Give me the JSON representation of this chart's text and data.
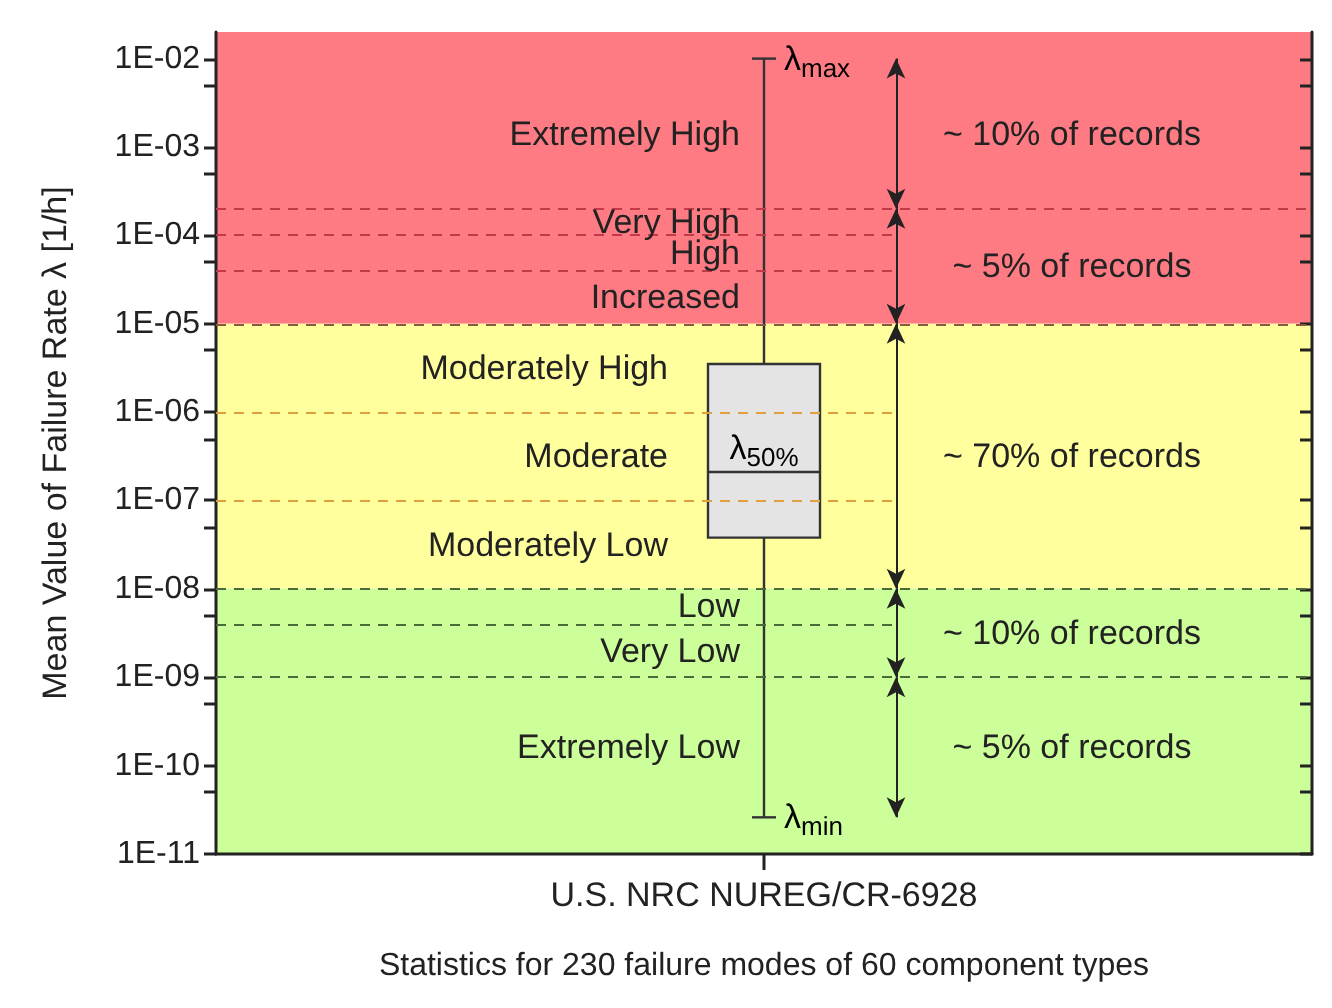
{
  "chart_data": {
    "type": "box",
    "xlabel": "Statistics for 230 failure modes of 60 component types",
    "ylabel": "Mean Value of Failure Rate λ [1/h]",
    "categories": [
      "U.S. NRC NUREG/CR-6928"
    ],
    "boxes": [
      {
        "low": 2.6e-11,
        "q1": 3.8e-08,
        "median": 2.1e-07,
        "q3": 3.5e-06,
        "high": 0.01
      }
    ],
    "log": "y",
    "ylim": [
      1e-11,
      0.02
    ],
    "yticks": [
      {
        "value": 1e-11,
        "label": "1E-11"
      },
      {
        "value": 5e-11,
        "label": null
      },
      {
        "value": 1e-10,
        "label": "1E-10"
      },
      {
        "value": 5e-10,
        "label": null
      },
      {
        "value": 1e-09,
        "label": "1E-09"
      },
      {
        "value": 5e-09,
        "label": null
      },
      {
        "value": 1e-08,
        "label": "1E-08"
      },
      {
        "value": 5e-08,
        "label": null
      },
      {
        "value": 1e-07,
        "label": "1E-07"
      },
      {
        "value": 5e-07,
        "label": null
      },
      {
        "value": 1e-06,
        "label": "1E-06"
      },
      {
        "value": 5e-06,
        "label": null
      },
      {
        "value": 1e-05,
        "label": "1E-05"
      },
      {
        "value": 5e-05,
        "label": null
      },
      {
        "value": 0.0001,
        "label": "1E-04"
      },
      {
        "value": 0.0005,
        "label": null
      },
      {
        "value": 0.001,
        "label": "1E-03"
      },
      {
        "value": 0.005,
        "label": null
      },
      {
        "value": 0.01,
        "label": "1E-02"
      }
    ],
    "grid": false,
    "bands": [
      {
        "axis": "y",
        "from": 1e-05,
        "to": 0.02,
        "color": "#ff7b84"
      },
      {
        "axis": "y",
        "from": 1e-08,
        "to": 1e-05,
        "color": "#ffff9e"
      },
      {
        "axis": "y",
        "from": 1e-11,
        "to": 1e-08,
        "color": "#ccff99"
      }
    ],
    "ref_lines": [
      {
        "axis": "y",
        "value": 0.0002,
        "color": "#c23a48",
        "line_style": "dashed"
      },
      {
        "axis": "y",
        "value": 0.0001,
        "color": "#c23a48",
        "line_style": "dashed"
      },
      {
        "axis": "y",
        "value": 4e-05,
        "color": "#c23a48",
        "line_style": "dashed"
      },
      {
        "axis": "y",
        "value": 1e-05,
        "color": "#8a5a3a",
        "line_style": "dashed"
      },
      {
        "axis": "y",
        "value": 1e-06,
        "color": "#e0a040",
        "line_style": "dashed"
      },
      {
        "axis": "y",
        "value": 1e-07,
        "color": "#e0a040",
        "line_style": "dashed"
      },
      {
        "axis": "y",
        "value": 1e-08,
        "color": "#4a6a3a",
        "line_style": "dashed"
      },
      {
        "axis": "y",
        "value": 4e-09,
        "color": "#4a6a3a",
        "line_style": "dashed"
      },
      {
        "axis": "y",
        "value": 1e-09,
        "color": "#4a6a3a",
        "line_style": "dashed"
      }
    ],
    "annotations": [
      "Extremely High",
      "Very High",
      "High",
      "Increased",
      "Moderately High",
      "Moderate",
      "Moderately Low",
      "Low",
      "Very Low",
      "Extremely Low",
      "~ 10% of records",
      "~ 5% of records",
      "~ 70% of records",
      "~ 10% of records",
      "~ 5% of records",
      "λ$_{max}$",
      "λ$_{50%}$",
      "λ$_{min}$"
    ]
  }
}
